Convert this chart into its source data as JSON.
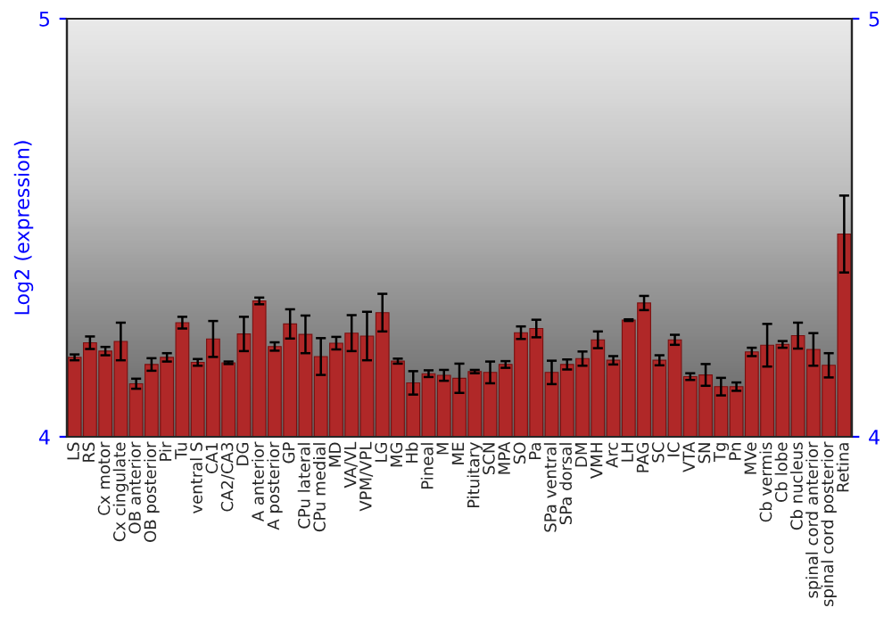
{
  "chart_data": {
    "type": "bar",
    "ylabel": "Log2 (expression)",
    "categories": [
      "LS",
      "RS",
      "Cx motor",
      "Cx cingulate",
      "OB anterior",
      "OB posterior",
      "Pir",
      "Tu",
      "ventral S",
      "CA1",
      "CA2/CA3",
      "DG",
      "A anterior",
      "A posterior",
      "GP",
      "CPu lateral",
      "CPu medial",
      "MD",
      "VA/VL",
      "VPM/VPL",
      "LG",
      "MG",
      "Hb",
      "Pineal",
      "M",
      "ME",
      "Pituitary",
      "SCN",
      "MPA",
      "SO",
      "Pa",
      "SPa ventral",
      "SPa dorsal",
      "DM",
      "VMH",
      "Arc",
      "LH",
      "PAG",
      "SC",
      "IC",
      "VTA",
      "SN",
      "Tg",
      "Pn",
      "MVe",
      "Cb vermis",
      "Cb lobe",
      "Cb nucleus",
      "spinal cord anterior",
      "spinal cord posterior",
      "Retina"
    ],
    "values": [
      4.19,
      4.225,
      4.205,
      4.228,
      4.127,
      4.173,
      4.19,
      4.273,
      4.178,
      4.234,
      4.177,
      4.246,
      4.325,
      4.216,
      4.27,
      4.245,
      4.192,
      4.224,
      4.248,
      4.241,
      4.297,
      4.181,
      4.129,
      4.151,
      4.147,
      4.14,
      4.156,
      4.154,
      4.173,
      4.249,
      4.259,
      4.154,
      4.173,
      4.187,
      4.232,
      4.183,
      4.279,
      4.32,
      4.183,
      4.232,
      4.144,
      4.148,
      4.12,
      4.12,
      4.203,
      4.219,
      4.221,
      4.242,
      4.209,
      4.171,
      4.485
    ],
    "errors": [
      0.007,
      0.015,
      0.01,
      0.045,
      0.012,
      0.015,
      0.01,
      0.014,
      0.008,
      0.043,
      0.003,
      0.041,
      0.008,
      0.01,
      0.035,
      0.045,
      0.044,
      0.015,
      0.043,
      0.058,
      0.045,
      0.006,
      0.028,
      0.008,
      0.013,
      0.035,
      0.004,
      0.026,
      0.008,
      0.015,
      0.021,
      0.028,
      0.012,
      0.017,
      0.02,
      0.01,
      0.002,
      0.017,
      0.012,
      0.012,
      0.008,
      0.026,
      0.021,
      0.01,
      0.01,
      0.051,
      0.008,
      0.031,
      0.039,
      0.029,
      0.092
    ],
    "color": "#b02828",
    "ylim": [
      4,
      5
    ],
    "yticks": [
      4,
      5
    ],
    "y2lim": [
      4,
      5
    ],
    "y2ticks": [
      4,
      5
    ],
    "grid": false,
    "legend": false
  }
}
